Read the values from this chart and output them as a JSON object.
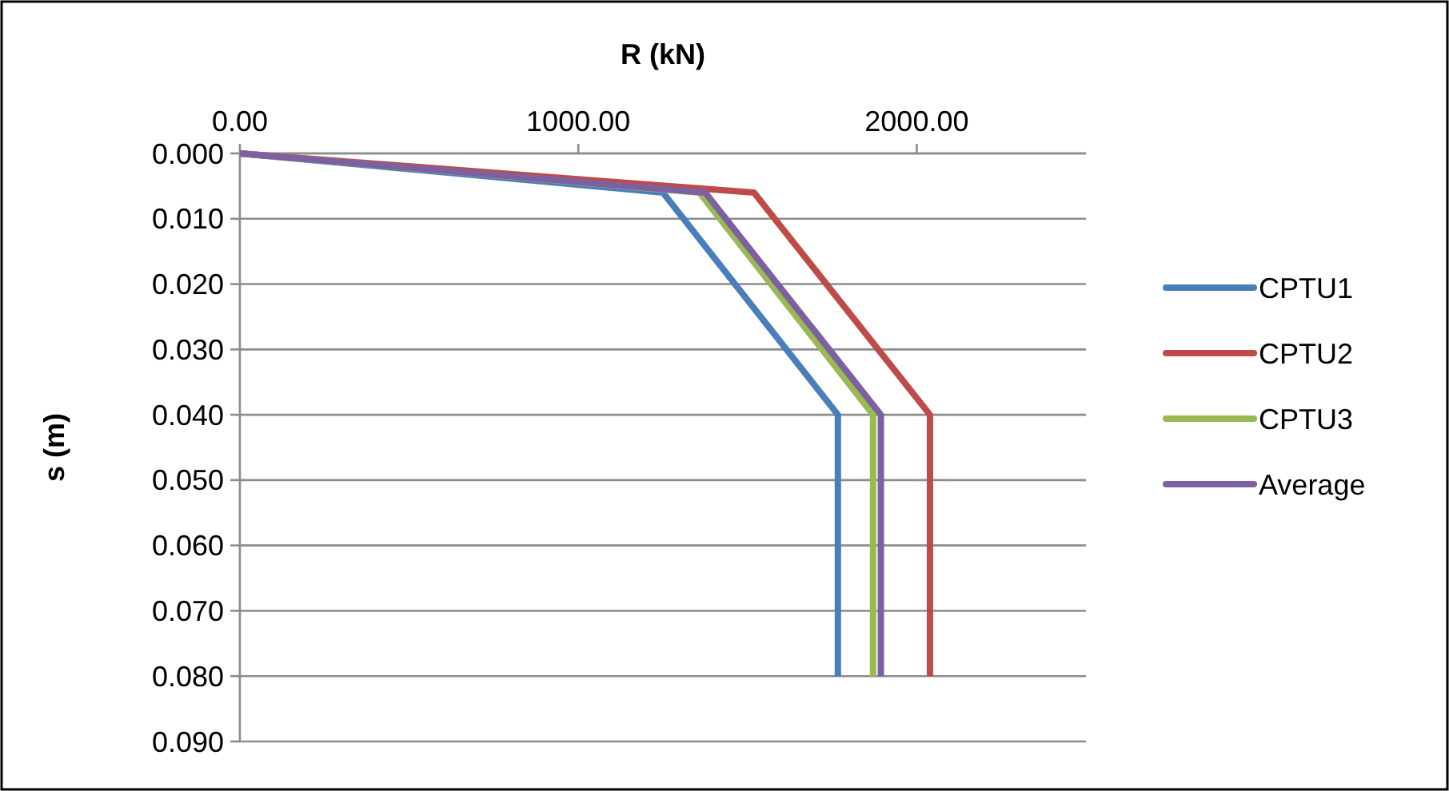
{
  "chart_data": {
    "type": "line",
    "xlabel": "R (kN)",
    "ylabel": "s (m)",
    "xlim": [
      0,
      2500
    ],
    "xticks": [
      {
        "value": 0,
        "label": "0.00"
      },
      {
        "value": 1000,
        "label": "1000.00"
      },
      {
        "value": 2000,
        "label": "2000.00"
      }
    ],
    "ylim": [
      0.09,
      0
    ],
    "yticks": [
      {
        "value": 0,
        "label": "0.000"
      },
      {
        "value": 0.01,
        "label": "0.010"
      },
      {
        "value": 0.02,
        "label": "0.020"
      },
      {
        "value": 0.03,
        "label": "0.030"
      },
      {
        "value": 0.04,
        "label": "0.040"
      },
      {
        "value": 0.05,
        "label": "0.050"
      },
      {
        "value": 0.06,
        "label": "0.060"
      },
      {
        "value": 0.07,
        "label": "0.070"
      },
      {
        "value": 0.08,
        "label": "0.080"
      },
      {
        "value": 0.09,
        "label": "0.090"
      }
    ],
    "grid": "y",
    "legend": "right",
    "marker": "none",
    "line_style": "solid",
    "series": [
      {
        "name": "CPTU1",
        "color": "#4a7ebb",
        "x": [
          0,
          1250,
          1767,
          1767
        ],
        "values": [
          0,
          0.006,
          0.04,
          0.08
        ]
      },
      {
        "name": "CPTU2",
        "color": "#be4b48",
        "x": [
          0,
          1519,
          2039,
          2039
        ],
        "values": [
          0,
          0.006,
          0.04,
          0.08
        ]
      },
      {
        "name": "CPTU3",
        "color": "#98b954",
        "x": [
          0,
          1358,
          1871,
          1871
        ],
        "values": [
          0,
          0.006,
          0.04,
          0.08
        ]
      },
      {
        "name": "Average",
        "color": "#7d60a0",
        "x": [
          0,
          1375,
          1894,
          1894
        ],
        "values": [
          0,
          0.006,
          0.04,
          0.08
        ]
      }
    ]
  }
}
